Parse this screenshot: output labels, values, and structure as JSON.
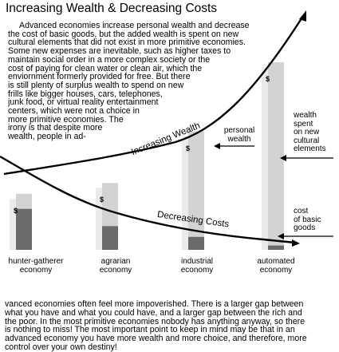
{
  "title": "Increasing Wealth & Decreasing Costs",
  "intro_lines": [
    "Advanced economies increase personal wealth and decrease",
    "the cost of basic goods,   but the added  wealth is spent on new",
    "cultural elements that did not exist in more primitive economies.",
    "Some new expenses are inevitable, such as higher taxes to",
    "maintain social order  in a more  complex  society or the",
    "cost of paying for clean water or clean air, which the",
    "enviornment formerly provided for free.  But there",
    "is still plenty of surplus wealth to spend on new",
    "frills like  bigger houses,  cars, telephones,",
    "junk food, or virtual reality entertainment",
    "centers, which were not a choice in",
    "more primitive economies. The",
    "irony is that  despite  more",
    "wealth, people in ad-"
  ],
  "outro_lines": [
    "vanced economies often feel more impoverished.  There is a larger gap between",
    "what you have and what you could have,  and a  larger gap between the rich and",
    "the poor.  In the most primitive economies nobody has anything anyway, so there",
    "is nothing to miss!   The most important  point to  keep in mind  may be that in an",
    "advanced economy you have more wealth and more choice,  and therefore, more",
    "control over your own destiny!"
  ],
  "curve_labels": {
    "wealth": "Increasing  Wealth",
    "costs": "Decreasing  Costs"
  },
  "annotations": {
    "personal_wealth": [
      "personal",
      "wealth"
    ],
    "wealth_spent": [
      "wealth",
      "spent",
      "on new",
      "cultural",
      "elements"
    ],
    "basic_goods": [
      "cost",
      "of basic",
      "goods"
    ]
  },
  "currency_symbol": "$",
  "economies": [
    {
      "label": [
        "hunter-gatherer",
        "economy"
      ],
      "wealth_level": 0.26,
      "cost_level": 0.19
    },
    {
      "label": [
        "agrarian",
        "economy"
      ],
      "wealth_level": 0.31,
      "cost_level": 0.11
    },
    {
      "label": [
        "industrial",
        "economy"
      ],
      "wealth_level": 0.55,
      "cost_level": 0.06
    },
    {
      "label": [
        "automated",
        "economy"
      ],
      "wealth_level": 0.87,
      "cost_level": 0.02
    }
  ],
  "colors": {
    "wealth_bar": "#d3d3d3",
    "wealth_bar_shade": "#ebebeb",
    "cost_bar": "#6b6b6b",
    "curve": "#000000"
  }
}
